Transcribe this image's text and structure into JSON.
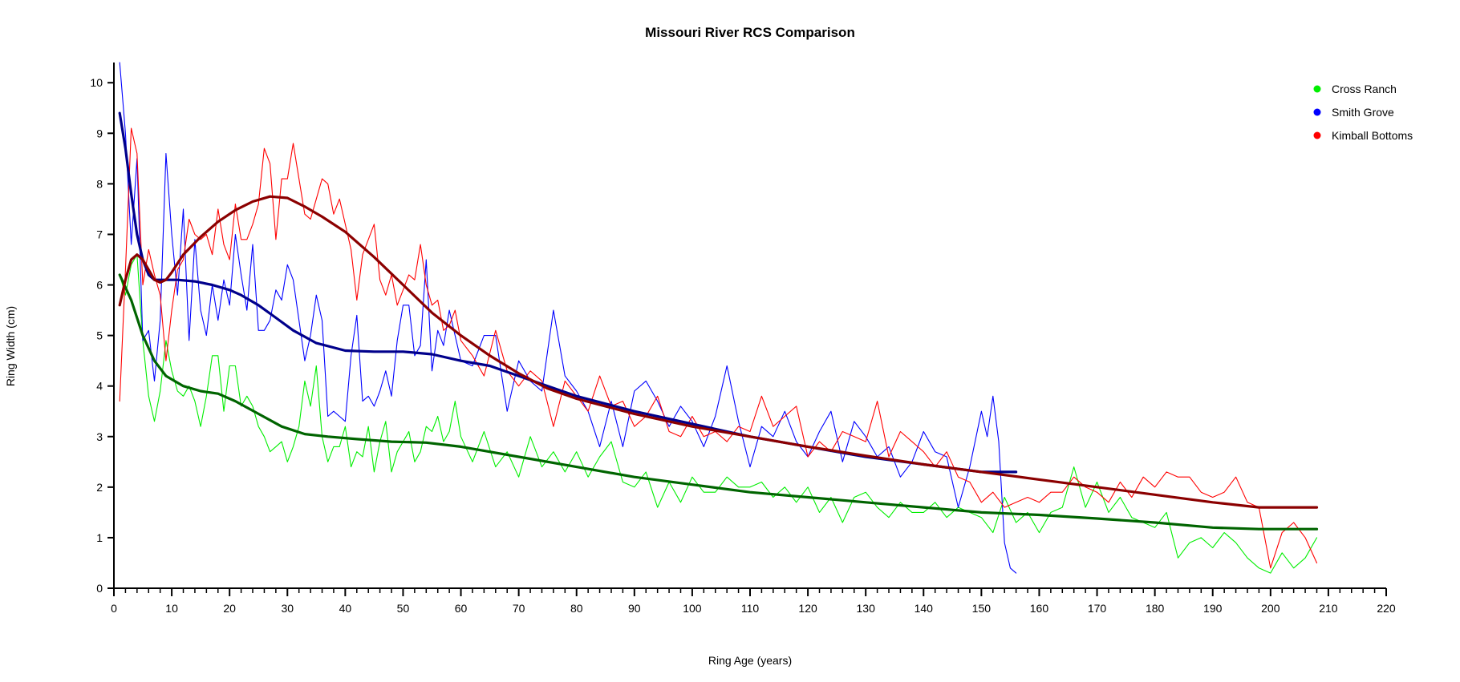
{
  "chart_data": {
    "type": "line",
    "title": "Missouri River RCS Comparison",
    "xlabel": "Ring Age (years)",
    "ylabel": "Ring Width (cm)",
    "xlim": [
      0,
      220
    ],
    "ylim": [
      0,
      10.4
    ],
    "x_major_ticks": [
      0,
      10,
      20,
      30,
      40,
      50,
      60,
      70,
      80,
      90,
      100,
      110,
      120,
      130,
      140,
      150,
      160,
      170,
      180,
      190,
      200,
      210,
      220
    ],
    "y_major_ticks": [
      0,
      1,
      2,
      3,
      4,
      5,
      6,
      7,
      8,
      9,
      10
    ],
    "legend_position": "top-right",
    "legend": [
      {
        "label": "Cross Ranch",
        "color": "#00ee00"
      },
      {
        "label": "Smith Grove",
        "color": "#0000ff"
      },
      {
        "label": "Kimball Bottoms",
        "color": "#ff0000"
      }
    ],
    "series": [
      {
        "name": "Cross Ranch",
        "color": "#00ee00",
        "style": "raw",
        "x": [
          1,
          2,
          3,
          4,
          5,
          6,
          7,
          8,
          9,
          10,
          11,
          12,
          13,
          14,
          15,
          16,
          17,
          18,
          19,
          20,
          21,
          22,
          23,
          24,
          25,
          26,
          27,
          28,
          29,
          30,
          31,
          32,
          33,
          34,
          35,
          36,
          37,
          38,
          39,
          40,
          41,
          42,
          43,
          44,
          45,
          46,
          47,
          48,
          49,
          50,
          51,
          52,
          53,
          54,
          55,
          56,
          57,
          58,
          59,
          60,
          62,
          64,
          66,
          68,
          70,
          72,
          74,
          76,
          78,
          80,
          82,
          84,
          86,
          88,
          90,
          92,
          94,
          96,
          98,
          100,
          102,
          104,
          106,
          108,
          110,
          112,
          114,
          116,
          118,
          120,
          122,
          124,
          126,
          128,
          130,
          132,
          134,
          136,
          138,
          140,
          142,
          144,
          146,
          148,
          150,
          152,
          154,
          156,
          158,
          160,
          162,
          164,
          166,
          168,
          170,
          172,
          174,
          176,
          178,
          180,
          182,
          184,
          186,
          188,
          190,
          192,
          194,
          196,
          198,
          200,
          202,
          204,
          206,
          208
        ],
        "y": [
          6.2,
          5.8,
          6.4,
          6.6,
          4.9,
          3.8,
          3.3,
          3.9,
          4.9,
          4.3,
          3.9,
          3.8,
          4.0,
          3.7,
          3.2,
          3.8,
          4.6,
          4.6,
          3.5,
          4.4,
          4.4,
          3.6,
          3.8,
          3.6,
          3.2,
          3.0,
          2.7,
          2.8,
          2.9,
          2.5,
          2.8,
          3.2,
          4.1,
          3.6,
          4.4,
          3.0,
          2.5,
          2.8,
          2.8,
          3.2,
          2.4,
          2.7,
          2.6,
          3.2,
          2.3,
          2.9,
          3.3,
          2.3,
          2.7,
          2.9,
          3.1,
          2.5,
          2.7,
          3.2,
          3.1,
          3.4,
          2.9,
          3.1,
          3.7,
          3.0,
          2.5,
          3.1,
          2.4,
          2.7,
          2.2,
          3.0,
          2.4,
          2.7,
          2.3,
          2.7,
          2.2,
          2.6,
          2.9,
          2.1,
          2.0,
          2.3,
          1.6,
          2.1,
          1.7,
          2.2,
          1.9,
          1.9,
          2.2,
          2.0,
          2.0,
          2.1,
          1.8,
          2.0,
          1.7,
          2.0,
          1.5,
          1.8,
          1.3,
          1.8,
          1.9,
          1.6,
          1.4,
          1.7,
          1.5,
          1.5,
          1.7,
          1.4,
          1.6,
          1.5,
          1.4,
          1.1,
          1.8,
          1.3,
          1.5,
          1.1,
          1.5,
          1.6,
          2.4,
          1.6,
          2.1,
          1.5,
          1.8,
          1.4,
          1.3,
          1.2,
          1.5,
          0.6,
          0.9,
          1.0,
          0.8,
          1.1,
          0.9,
          0.6,
          0.4,
          0.3,
          0.7,
          0.4,
          0.6,
          1.0
        ]
      },
      {
        "name": "Smith Grove",
        "color": "#0000ff",
        "style": "raw",
        "x": [
          1,
          2,
          3,
          4,
          5,
          6,
          7,
          8,
          9,
          10,
          11,
          12,
          13,
          14,
          15,
          16,
          17,
          18,
          19,
          20,
          21,
          22,
          23,
          24,
          25,
          26,
          27,
          28,
          29,
          30,
          31,
          32,
          33,
          34,
          35,
          36,
          37,
          38,
          39,
          40,
          41,
          42,
          43,
          44,
          45,
          46,
          47,
          48,
          49,
          50,
          51,
          52,
          53,
          54,
          55,
          56,
          57,
          58,
          59,
          60,
          62,
          64,
          66,
          68,
          70,
          72,
          74,
          76,
          78,
          80,
          82,
          84,
          86,
          88,
          90,
          92,
          94,
          96,
          98,
          100,
          102,
          104,
          106,
          108,
          110,
          112,
          114,
          116,
          118,
          120,
          122,
          124,
          126,
          128,
          130,
          132,
          134,
          136,
          138,
          140,
          142,
          144,
          146,
          148,
          150,
          151,
          152,
          153,
          154,
          155,
          156
        ],
        "y": [
          10.4,
          9.0,
          6.8,
          8.5,
          4.9,
          5.1,
          4.1,
          5.3,
          8.6,
          7.0,
          5.8,
          7.5,
          4.9,
          6.9,
          5.5,
          5.0,
          6.0,
          5.3,
          6.1,
          5.6,
          7.0,
          6.2,
          5.5,
          6.8,
          5.1,
          5.1,
          5.3,
          5.9,
          5.7,
          6.4,
          6.1,
          5.3,
          4.5,
          5.0,
          5.8,
          5.3,
          3.4,
          3.5,
          3.4,
          3.3,
          4.6,
          5.4,
          3.7,
          3.8,
          3.6,
          3.9,
          4.3,
          3.8,
          4.9,
          5.6,
          5.6,
          4.6,
          4.8,
          6.5,
          4.3,
          5.1,
          4.8,
          5.5,
          5.0,
          4.5,
          4.4,
          5.0,
          5.0,
          3.5,
          4.5,
          4.1,
          3.9,
          5.5,
          4.2,
          3.9,
          3.5,
          2.8,
          3.7,
          2.8,
          3.9,
          4.1,
          3.7,
          3.2,
          3.6,
          3.3,
          2.8,
          3.4,
          4.4,
          3.3,
          2.4,
          3.2,
          3.0,
          3.5,
          2.9,
          2.6,
          3.1,
          3.5,
          2.5,
          3.3,
          3.0,
          2.6,
          2.8,
          2.2,
          2.5,
          3.1,
          2.7,
          2.6,
          1.6,
          2.4,
          3.5,
          3.0,
          3.8,
          2.9,
          0.9,
          0.4,
          0.3
        ]
      },
      {
        "name": "Kimball Bottoms",
        "color": "#ff0000",
        "style": "raw",
        "x": [
          1,
          2,
          3,
          4,
          5,
          6,
          7,
          8,
          9,
          10,
          11,
          12,
          13,
          14,
          15,
          16,
          17,
          18,
          19,
          20,
          21,
          22,
          23,
          24,
          25,
          26,
          27,
          28,
          29,
          30,
          31,
          32,
          33,
          34,
          35,
          36,
          37,
          38,
          39,
          40,
          41,
          42,
          43,
          44,
          45,
          46,
          47,
          48,
          49,
          50,
          51,
          52,
          53,
          54,
          55,
          56,
          57,
          58,
          59,
          60,
          62,
          64,
          66,
          68,
          70,
          72,
          74,
          76,
          78,
          80,
          82,
          84,
          86,
          88,
          90,
          92,
          94,
          96,
          98,
          100,
          102,
          104,
          106,
          108,
          110,
          112,
          114,
          116,
          118,
          120,
          122,
          124,
          126,
          128,
          130,
          132,
          134,
          136,
          138,
          140,
          142,
          144,
          146,
          148,
          150,
          152,
          154,
          156,
          158,
          160,
          162,
          164,
          166,
          168,
          170,
          172,
          174,
          176,
          178,
          180,
          182,
          184,
          186,
          188,
          190,
          192,
          194,
          196,
          198,
          200,
          202,
          204,
          206,
          208
        ],
        "y": [
          3.7,
          6.3,
          9.1,
          8.6,
          6.0,
          6.7,
          6.2,
          5.8,
          4.5,
          5.5,
          6.3,
          6.5,
          7.3,
          7.0,
          6.9,
          7.0,
          6.6,
          7.5,
          6.8,
          6.5,
          7.6,
          6.9,
          6.9,
          7.2,
          7.6,
          8.7,
          8.4,
          6.9,
          8.1,
          8.1,
          8.8,
          8.1,
          7.4,
          7.3,
          7.7,
          8.1,
          8.0,
          7.4,
          7.7,
          7.2,
          6.7,
          5.7,
          6.6,
          6.9,
          7.2,
          6.1,
          5.8,
          6.2,
          5.6,
          5.9,
          6.2,
          6.1,
          6.8,
          6.0,
          5.6,
          5.7,
          5.1,
          5.2,
          5.5,
          4.9,
          4.6,
          4.2,
          5.1,
          4.3,
          4.0,
          4.3,
          4.1,
          3.2,
          4.1,
          3.8,
          3.5,
          4.2,
          3.6,
          3.7,
          3.2,
          3.4,
          3.8,
          3.1,
          3.0,
          3.4,
          3.0,
          3.1,
          2.9,
          3.2,
          3.1,
          3.8,
          3.2,
          3.4,
          3.6,
          2.6,
          2.9,
          2.7,
          3.1,
          3.0,
          2.9,
          3.7,
          2.6,
          3.1,
          2.9,
          2.7,
          2.4,
          2.7,
          2.2,
          2.1,
          1.7,
          1.9,
          1.6,
          1.7,
          1.8,
          1.7,
          1.9,
          1.9,
          2.2,
          2.0,
          1.9,
          1.7,
          2.1,
          1.8,
          2.2,
          2.0,
          2.3,
          2.2,
          2.2,
          1.9,
          1.8,
          1.9,
          2.2,
          1.7,
          1.6,
          0.4,
          1.1,
          1.3,
          1.0,
          0.5
        ]
      },
      {
        "name": "Cross Ranch",
        "color": "#006400",
        "style": "smoothed",
        "x": [
          1,
          3,
          5,
          7,
          9,
          12,
          15,
          18,
          21,
          25,
          29,
          33,
          37,
          42,
          48,
          54,
          60,
          70,
          80,
          90,
          100,
          110,
          120,
          130,
          140,
          150,
          160,
          170,
          180,
          190,
          198,
          208
        ],
        "y": [
          6.2,
          5.7,
          5.0,
          4.5,
          4.2,
          4.0,
          3.9,
          3.85,
          3.7,
          3.45,
          3.2,
          3.05,
          3.0,
          2.95,
          2.9,
          2.88,
          2.8,
          2.6,
          2.4,
          2.2,
          2.05,
          1.9,
          1.8,
          1.7,
          1.6,
          1.5,
          1.45,
          1.38,
          1.3,
          1.2,
          1.17,
          1.17
        ]
      },
      {
        "name": "Smith Grove",
        "color": "#00008b",
        "style": "smoothed",
        "x": [
          1,
          2,
          3,
          4,
          5,
          6,
          7,
          8,
          9,
          11,
          14,
          17,
          20,
          22,
          25,
          28,
          31,
          35,
          40,
          45,
          50,
          55,
          60,
          65,
          70,
          75,
          80,
          90,
          100,
          110,
          120,
          130,
          140,
          150,
          156
        ],
        "y": [
          9.4,
          8.7,
          7.8,
          7.0,
          6.5,
          6.2,
          6.1,
          6.1,
          6.1,
          6.1,
          6.07,
          6.0,
          5.9,
          5.8,
          5.6,
          5.35,
          5.1,
          4.85,
          4.7,
          4.68,
          4.68,
          4.63,
          4.5,
          4.4,
          4.2,
          4.0,
          3.8,
          3.5,
          3.25,
          3.0,
          2.8,
          2.6,
          2.45,
          2.3,
          2.3
        ]
      },
      {
        "name": "Kimball Bottoms",
        "color": "#8b0000",
        "style": "smoothed",
        "x": [
          1,
          2,
          3,
          4,
          5,
          6,
          7,
          8,
          9,
          10,
          12,
          15,
          18,
          21,
          24,
          27,
          30,
          33,
          36,
          40,
          45,
          50,
          55,
          60,
          65,
          70,
          75,
          80,
          90,
          100,
          110,
          120,
          130,
          140,
          150,
          160,
          170,
          180,
          190,
          198,
          208
        ],
        "y": [
          5.6,
          6.1,
          6.5,
          6.6,
          6.5,
          6.3,
          6.1,
          6.05,
          6.1,
          6.25,
          6.6,
          6.95,
          7.25,
          7.48,
          7.65,
          7.75,
          7.72,
          7.55,
          7.35,
          7.05,
          6.55,
          6.0,
          5.45,
          5.0,
          4.6,
          4.25,
          3.95,
          3.75,
          3.45,
          3.2,
          3.0,
          2.8,
          2.62,
          2.45,
          2.3,
          2.15,
          2.0,
          1.85,
          1.7,
          1.6,
          1.6
        ]
      }
    ]
  }
}
